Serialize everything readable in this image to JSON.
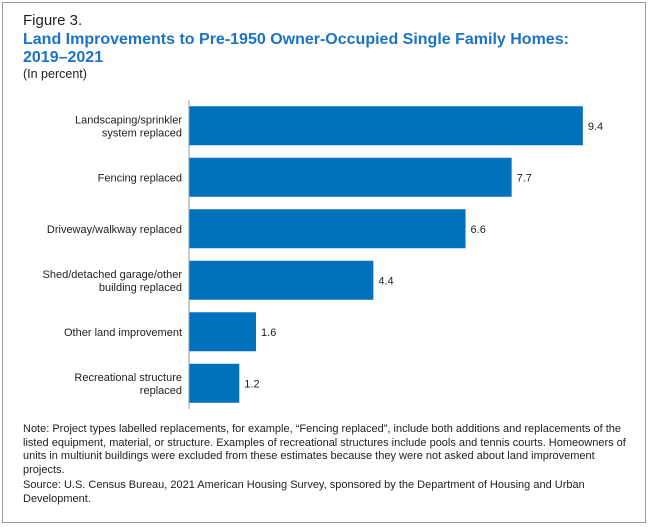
{
  "figure_label": "Figure 3.",
  "title_line1": "Land Improvements to Pre-1950 Owner-Occupied Single Family Homes:",
  "title_line2": "2019–2021",
  "subtitle": "(In percent)",
  "note": "Note: Project types labelled replacements, for example, “Fencing replaced”, include both additions and replacements of the listed equipment, material, or structure. Examples of recreational structures include pools and tennis courts. Homeowners of units in multiunit buildings were excluded from these estimates because they were not asked about land improvement projects.",
  "source": "Source: U.S. Census Bureau, 2021 American Housing Survey, sponsored by the Department of Housing and Urban Development.",
  "colors": {
    "bar": "#0071bc",
    "title": "#1a73c7",
    "axis": "#999999"
  },
  "chart_data": {
    "type": "bar",
    "orientation": "horizontal",
    "categories": [
      [
        "Landscaping/sprinkler",
        "system replaced"
      ],
      [
        "Fencing replaced"
      ],
      [
        "Driveway/walkway replaced"
      ],
      [
        "Shed/detached garage/other",
        "building replaced"
      ],
      [
        "Other land improvement"
      ],
      [
        "Recreational structure",
        "replaced"
      ]
    ],
    "values": [
      9.4,
      7.7,
      6.6,
      4.4,
      1.6,
      1.2
    ],
    "value_labels": [
      "9.4",
      "7.7",
      "6.6",
      "4.4",
      "1.6",
      "1.2"
    ],
    "xlim": [
      0,
      10
    ],
    "grid": false,
    "legend": "none"
  }
}
